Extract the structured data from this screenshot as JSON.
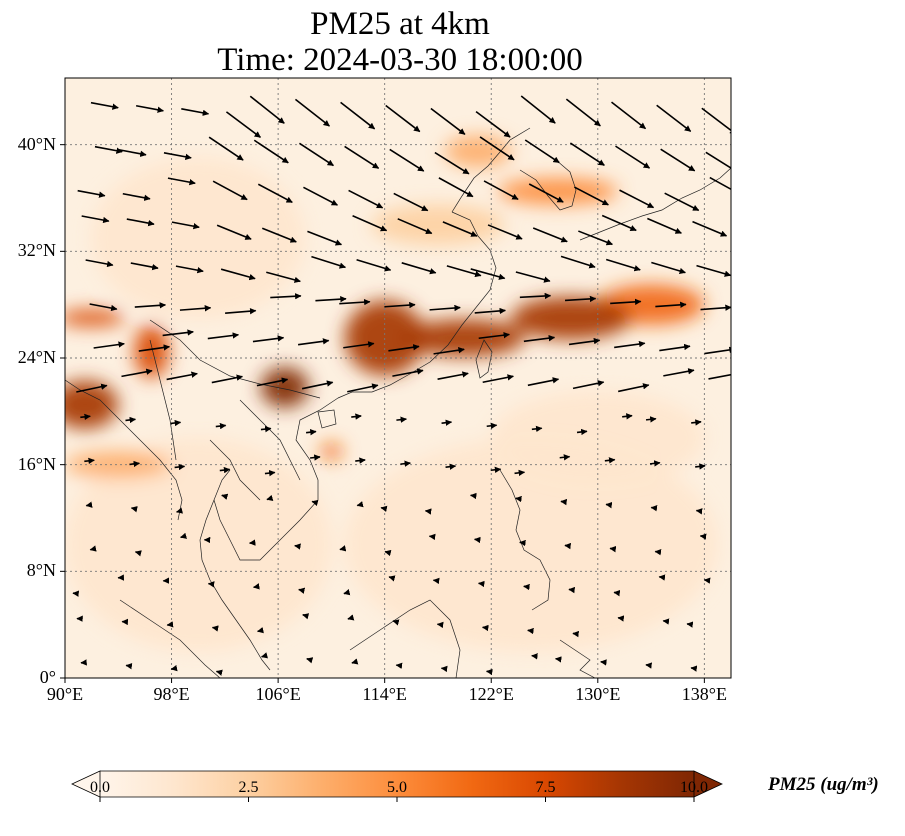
{
  "title_line1": "PM25 at 4km",
  "title_line2": "Time: 2024-03-30 18:00:00",
  "map": {
    "lon_range": [
      90,
      140
    ],
    "lat_range": [
      0,
      45
    ],
    "x_ticks": [
      {
        "value": 90,
        "label": "90°E"
      },
      {
        "value": 98,
        "label": "98°E"
      },
      {
        "value": 106,
        "label": "106°E"
      },
      {
        "value": 114,
        "label": "114°E"
      },
      {
        "value": 122,
        "label": "122°E"
      },
      {
        "value": 130,
        "label": "130°E"
      },
      {
        "value": 138,
        "label": "138°E"
      }
    ],
    "y_ticks": [
      {
        "value": 0,
        "label": "0°"
      },
      {
        "value": 8,
        "label": "8°N"
      },
      {
        "value": 16,
        "label": "16°N"
      },
      {
        "value": 24,
        "label": "24°N"
      },
      {
        "value": 32,
        "label": "32°N"
      },
      {
        "value": 40,
        "label": "40°N"
      }
    ],
    "gridlines": true
  },
  "colorbar": {
    "label": "PM25 (ug/m³)",
    "min": 0.0,
    "max": 10.0,
    "ticks": [
      "0.0",
      "2.5",
      "5.0",
      "7.5",
      "10.0"
    ],
    "colormap": [
      "#fff5eb",
      "#fee6ce",
      "#fdd0a2",
      "#fdae6b",
      "#fd8d3c",
      "#f16913",
      "#d94801",
      "#a63603",
      "#7f2704"
    ],
    "extend": "both"
  },
  "pm25_plumes": [
    {
      "lon": 114,
      "lat": 25.5,
      "rlon": 3.0,
      "rlat": 2.8,
      "value": 9.0
    },
    {
      "lon": 120,
      "lat": 25.5,
      "rlon": 4.5,
      "rlat": 1.4,
      "value": 8.5
    },
    {
      "lon": 128,
      "lat": 27,
      "rlon": 4.5,
      "rlat": 1.6,
      "value": 8.5
    },
    {
      "lon": 134,
      "lat": 28,
      "rlon": 4.0,
      "rlat": 1.5,
      "value": 6.5
    },
    {
      "lon": 106.5,
      "lat": 21.8,
      "rlon": 1.8,
      "rlat": 1.5,
      "value": 9.5
    },
    {
      "lon": 96.5,
      "lat": 24.5,
      "rlon": 1.3,
      "rlat": 2.0,
      "value": 8.0
    },
    {
      "lon": 92,
      "lat": 27,
      "rlon": 2.5,
      "rlat": 0.6,
      "value": 7.0
    },
    {
      "lon": 91.5,
      "lat": 20.5,
      "rlon": 2.5,
      "rlat": 1.8,
      "value": 8.5
    },
    {
      "lon": 110,
      "lat": 17,
      "rlon": 0.8,
      "rlat": 0.6,
      "value": 6.0
    },
    {
      "lon": 121,
      "lat": 39.5,
      "rlon": 2.5,
      "rlat": 1.2,
      "value": 4.0
    },
    {
      "lon": 127,
      "lat": 36.5,
      "rlon": 4.5,
      "rlat": 1.0,
      "value": 4.5
    },
    {
      "lon": 118,
      "lat": 34,
      "rlon": 5.0,
      "rlat": 1.5,
      "value": 3.0
    },
    {
      "lon": 100,
      "lat": 33,
      "rlon": 8.0,
      "rlat": 6.0,
      "value": 1.5
    },
    {
      "lon": 130,
      "lat": 18,
      "rlon": 8.0,
      "rlat": 3.5,
      "value": 1.8
    },
    {
      "lon": 100,
      "lat": 10,
      "rlon": 10.0,
      "rlat": 8.0,
      "value": 1.2
    },
    {
      "lon": 125,
      "lat": 10,
      "rlon": 14.0,
      "rlat": 8.0,
      "value": 1.0
    },
    {
      "lon": 94,
      "lat": 16,
      "rlon": 4.0,
      "rlat": 1.0,
      "value": 4.0
    }
  ]
}
